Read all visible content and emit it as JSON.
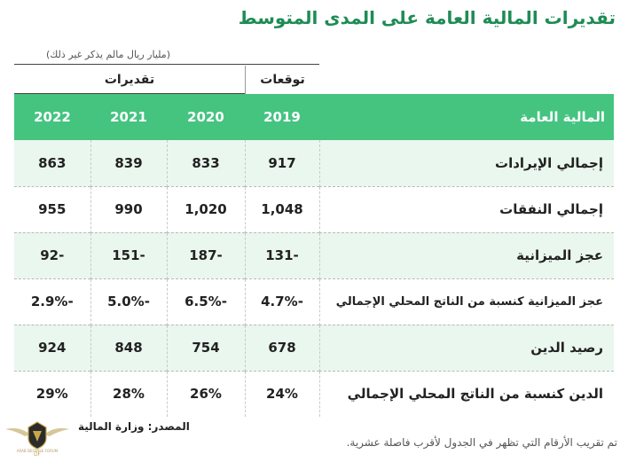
{
  "title": "تقديرات المالية العامة على المدى المتوسط",
  "unit_note": "(مليار ريال مالم يذكر غير ذلك)",
  "groups": {
    "forecast": "توقعات",
    "estimates": "تقديرات"
  },
  "header": {
    "label": "المالية العامة",
    "years": [
      "2019",
      "2020",
      "2021",
      "2022"
    ]
  },
  "rows": [
    {
      "label": "إجمالي الإيرادات",
      "values": [
        "917",
        "833",
        "839",
        "863"
      ]
    },
    {
      "label": "إجمالي النفقات",
      "values": [
        "1,048",
        "1,020",
        "990",
        "955"
      ]
    },
    {
      "label": "عجز الميزانية",
      "values": [
        "-131",
        "-187",
        "-151",
        "-92"
      ]
    },
    {
      "label": "عجز الميزانية كنسبة من الناتج المحلي الإجمالي",
      "values": [
        "-4.7%",
        "-6.5%",
        "-5.0%",
        "-2.9%"
      ]
    },
    {
      "label": "رصيد الدين",
      "values": [
        "678",
        "754",
        "848",
        "924"
      ]
    },
    {
      "label": "الدين كنسبة من الناتج المحلي الإجمالي",
      "values": [
        "24%",
        "26%",
        "28%",
        "29%"
      ]
    }
  ],
  "source": "المصدر: وزارة المالية",
  "footnote": "تم تقريب الأرقام التي تظهر في الجدول لأقرب فاصلة عشرية.",
  "watermark": {
    "text": "ARAB DEFENSE FORUM"
  },
  "colors": {
    "title": "#1e8c55",
    "header_bg": "#45c480",
    "stripe": "#eaf7ee"
  }
}
